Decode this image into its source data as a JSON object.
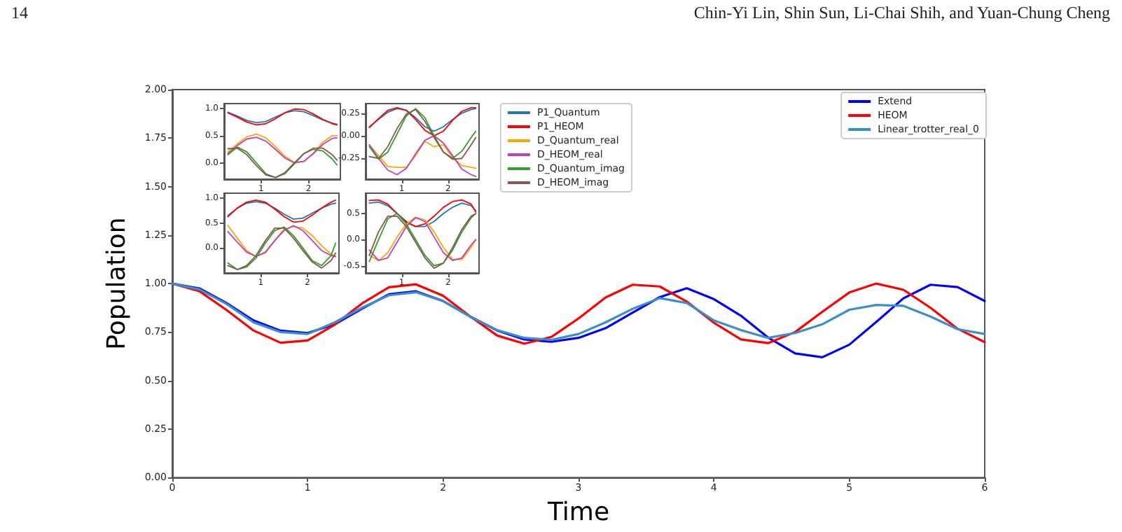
{
  "chart_data": [
    {
      "type": "line",
      "xlabel": "Time",
      "ylabel": "Population",
      "annotations": [
        "14",
        "Chin-Yi Lin, Shin Sun, Li-Chai Shih, and Yuan-Chung Cheng"
      ],
      "x": [
        0,
        0.2,
        0.4,
        0.6,
        0.8,
        1.0,
        1.2,
        1.4,
        1.6,
        1.8,
        2.0,
        2.2,
        2.4,
        2.6,
        2.8,
        3.0,
        3.2,
        3.4,
        3.6,
        3.8,
        4.0,
        4.2,
        4.4,
        4.6,
        4.8,
        5.0,
        5.2,
        5.4,
        5.6,
        5.8,
        6.0
      ],
      "series": [
        {
          "name": "Extend",
          "color": "#0000ff",
          "values": [
            1.0,
            0.975,
            0.9,
            0.81,
            0.757,
            0.745,
            0.79,
            0.87,
            0.945,
            0.96,
            0.91,
            0.83,
            0.758,
            0.712,
            0.7,
            0.72,
            0.77,
            0.85,
            0.93,
            0.976,
            0.92,
            0.834,
            0.722,
            0.64,
            0.62,
            0.685,
            0.803,
            0.924,
            0.994,
            0.982,
            0.91
          ]
        },
        {
          "name": "HEOM",
          "color": "#ff0000",
          "values": [
            1.0,
            0.961,
            0.864,
            0.758,
            0.695,
            0.707,
            0.788,
            0.897,
            0.981,
            0.996,
            0.937,
            0.831,
            0.732,
            0.69,
            0.725,
            0.82,
            0.928,
            0.994,
            0.985,
            0.907,
            0.798,
            0.712,
            0.693,
            0.75,
            0.854,
            0.954,
            1.0,
            0.968,
            0.875,
            0.767,
            0.698
          ]
        },
        {
          "name": "Linear_trotter_real_0",
          "color": "#3b8fc9",
          "values": [
            1.0,
            0.97,
            0.895,
            0.8,
            0.75,
            0.74,
            0.8,
            0.875,
            0.94,
            0.955,
            0.91,
            0.83,
            0.76,
            0.72,
            0.71,
            0.74,
            0.8,
            0.87,
            0.925,
            0.9,
            0.81,
            0.76,
            0.72,
            0.745,
            0.79,
            0.865,
            0.89,
            0.885,
            0.83,
            0.765,
            0.74
          ]
        }
      ],
      "xlim": [
        0,
        6
      ],
      "xticks": [
        0,
        1,
        2,
        3,
        4,
        5,
        6
      ],
      "ylim": [
        0,
        2
      ],
      "yticks": [
        {
          "value": 0,
          "label": "0.00"
        },
        {
          "value": 0.25,
          "label": "0.25"
        },
        {
          "value": 0.5,
          "label": "0.50"
        },
        {
          "value": 0.75,
          "label": "0.75"
        },
        {
          "value": 1,
          "label": "1.00"
        },
        {
          "value": 1.25,
          "label": "1.25"
        },
        {
          "value": 1.5,
          "label": "1.50"
        },
        {
          "value": 1.75,
          "label": "1.75"
        },
        {
          "value": 2,
          "label": "2.00"
        }
      ],
      "legend": "top right",
      "grid": false,
      "marker": "none",
      "line_style": "solid"
    },
    {
      "type": "line",
      "x": [
        0.3,
        0.5,
        0.7,
        0.9,
        1.1,
        1.3,
        1.5,
        1.7,
        1.9,
        2.1,
        2.3,
        2.5,
        2.6
      ],
      "series": [
        {
          "color": "#1f77b4",
          "values": [
            0.93,
            0.86,
            0.78,
            0.74,
            0.76,
            0.84,
            0.92,
            0.96,
            0.94,
            0.87,
            0.79,
            0.73,
            0.71
          ]
        },
        {
          "color": "#ff0000",
          "values": [
            0.92,
            0.84,
            0.75,
            0.7,
            0.72,
            0.81,
            0.92,
            0.99,
            0.98,
            0.9,
            0.8,
            0.72,
            0.7
          ]
        },
        {
          "color": "#ffa500",
          "values": [
            0.2,
            0.35,
            0.48,
            0.53,
            0.46,
            0.3,
            0.12,
            0.01,
            0.02,
            0.18,
            0.38,
            0.5,
            0.5
          ]
        },
        {
          "color": "#c040c0",
          "values": [
            0.17,
            0.32,
            0.44,
            0.47,
            0.4,
            0.25,
            0.09,
            0.0,
            0.03,
            0.17,
            0.34,
            0.45,
            0.46
          ]
        },
        {
          "color": "#2ca02c",
          "values": [
            0.15,
            0.29,
            0.2,
            0.0,
            -0.2,
            -0.27,
            -0.2,
            -0.02,
            0.17,
            0.25,
            0.22,
            0.07,
            -0.04
          ]
        },
        {
          "color": "#8c564b",
          "values": [
            0.26,
            0.27,
            0.15,
            -0.05,
            -0.22,
            -0.27,
            -0.18,
            0.0,
            0.17,
            0.27,
            0.27,
            0.15,
            0.05
          ]
        }
      ],
      "xlim": [
        0.22,
        2.67
      ],
      "xticks": [
        1,
        2
      ],
      "ylim": [
        -0.3,
        1.09
      ],
      "yticks": [
        {
          "value": 0,
          "label": "0.0"
        },
        {
          "value": 0.5,
          "label": "0.5"
        },
        {
          "value": 1,
          "label": "1.0"
        }
      ],
      "legend": false,
      "grid": false,
      "marker": "none",
      "line_style": "solid"
    },
    {
      "type": "line",
      "x": [
        0.3,
        0.5,
        0.7,
        0.9,
        1.1,
        1.3,
        1.5,
        1.7,
        1.9,
        2.1,
        2.3,
        2.5,
        2.6
      ],
      "series": [
        {
          "name": "P1_Quantum",
          "color": "#1f77b4",
          "values": [
            0.1,
            0.18,
            0.26,
            0.3,
            0.28,
            0.2,
            0.1,
            0.05,
            0.1,
            0.18,
            0.25,
            0.29,
            0.3
          ]
        },
        {
          "name": "P1_HEOM",
          "color": "#ff0000",
          "values": [
            0.09,
            0.19,
            0.28,
            0.31,
            0.28,
            0.18,
            0.06,
            0.0,
            0.05,
            0.17,
            0.27,
            0.31,
            0.31
          ]
        },
        {
          "name": "D_Quantum_real",
          "color": "#ffa500",
          "values": [
            -0.1,
            -0.22,
            -0.34,
            -0.35,
            -0.35,
            -0.22,
            -0.06,
            -0.12,
            -0.1,
            -0.24,
            -0.33,
            -0.35,
            -0.36
          ]
        },
        {
          "name": "D_HEOM_real",
          "color": "#c040c0",
          "values": [
            -0.1,
            -0.25,
            -0.38,
            -0.43,
            -0.36,
            -0.2,
            -0.05,
            0.0,
            -0.08,
            -0.22,
            -0.37,
            -0.43,
            -0.45
          ]
        },
        {
          "name": "D_Quantum_imag",
          "color": "#2ca02c",
          "values": [
            -0.12,
            -0.26,
            -0.18,
            0.02,
            0.22,
            0.3,
            0.2,
            0.0,
            -0.18,
            -0.25,
            -0.17,
            -0.02,
            0.05
          ]
        },
        {
          "name": "D_HEOM_imag",
          "color": "#8c564b",
          "values": [
            -0.23,
            -0.25,
            -0.12,
            0.08,
            0.24,
            0.29,
            0.16,
            -0.02,
            -0.18,
            -0.26,
            -0.25,
            -0.1,
            -0.02
          ]
        }
      ],
      "xlim": [
        0.22,
        2.67
      ],
      "xticks": [
        1,
        2
      ],
      "ylim": [
        -0.48,
        0.355
      ],
      "yticks": [
        {
          "value": -0.25,
          "label": "-0.25"
        },
        {
          "value": 0,
          "label": "0.00"
        },
        {
          "value": 0.25,
          "label": "0.25"
        }
      ],
      "legend": "right",
      "grid": false,
      "marker": "none",
      "line_style": "solid"
    },
    {
      "type": "line",
      "x": [
        0.3,
        0.5,
        0.7,
        0.9,
        1.1,
        1.3,
        1.5,
        1.7,
        1.9,
        2.1,
        2.3,
        2.5,
        2.6
      ],
      "series": [
        {
          "color": "#1f77b4",
          "values": [
            0.65,
            0.8,
            0.9,
            0.93,
            0.9,
            0.8,
            0.68,
            0.58,
            0.6,
            0.7,
            0.8,
            0.88,
            0.9
          ]
        },
        {
          "color": "#ff0000",
          "values": [
            0.63,
            0.8,
            0.92,
            0.96,
            0.92,
            0.78,
            0.63,
            0.52,
            0.54,
            0.66,
            0.8,
            0.92,
            0.96
          ]
        },
        {
          "color": "#ffa500",
          "values": [
            0.45,
            0.2,
            -0.05,
            -0.17,
            -0.1,
            0.15,
            0.38,
            0.43,
            0.4,
            0.25,
            0.05,
            -0.12,
            -0.17
          ]
        },
        {
          "color": "#c040c0",
          "values": [
            0.33,
            0.12,
            -0.08,
            -0.17,
            -0.08,
            0.15,
            0.35,
            0.45,
            0.35,
            0.15,
            -0.05,
            -0.15,
            -0.17
          ]
        },
        {
          "color": "#2ca02c",
          "values": [
            -0.3,
            -0.43,
            -0.38,
            -0.2,
            0.1,
            0.35,
            0.42,
            0.25,
            0.0,
            -0.25,
            -0.35,
            -0.15,
            0.1
          ]
        },
        {
          "color": "#8c564b",
          "values": [
            -0.35,
            -0.43,
            -0.35,
            -0.15,
            0.15,
            0.4,
            0.4,
            0.2,
            -0.05,
            -0.28,
            -0.4,
            -0.25,
            -0.1
          ]
        }
      ],
      "xlim": [
        0.22,
        2.67
      ],
      "xticks": [
        1,
        2
      ],
      "ylim": [
        -0.5,
        1.1
      ],
      "yticks": [
        {
          "value": 0,
          "label": "0.0"
        },
        {
          "value": 0.5,
          "label": "0.5"
        },
        {
          "value": 1,
          "label": "1.0"
        }
      ],
      "legend": false,
      "grid": false,
      "marker": "none",
      "line_style": "solid"
    },
    {
      "type": "line",
      "x": [
        0.3,
        0.5,
        0.7,
        0.9,
        1.1,
        1.3,
        1.5,
        1.7,
        1.9,
        2.1,
        2.3,
        2.5,
        2.6
      ],
      "series": [
        {
          "color": "#1f77b4",
          "values": [
            0.7,
            0.72,
            0.65,
            0.5,
            0.35,
            0.25,
            0.25,
            0.35,
            0.5,
            0.62,
            0.7,
            0.65,
            0.55
          ]
        },
        {
          "color": "#ff0000",
          "values": [
            0.75,
            0.76,
            0.68,
            0.5,
            0.33,
            0.25,
            0.3,
            0.45,
            0.62,
            0.73,
            0.76,
            0.68,
            0.53
          ]
        },
        {
          "color": "#ffa500",
          "values": [
            -0.3,
            -0.4,
            -0.25,
            0.05,
            0.3,
            0.43,
            0.38,
            0.15,
            -0.15,
            -0.38,
            -0.38,
            -0.15,
            0.0
          ]
        },
        {
          "color": "#c040c0",
          "values": [
            -0.2,
            -0.4,
            -0.35,
            -0.05,
            0.25,
            0.42,
            0.35,
            0.05,
            -0.25,
            -0.4,
            -0.35,
            -0.1,
            0.0
          ]
        },
        {
          "color": "#2ca02c",
          "values": [
            -0.42,
            0.0,
            0.4,
            0.5,
            0.3,
            0.0,
            -0.3,
            -0.5,
            -0.45,
            -0.2,
            0.15,
            0.42,
            0.5
          ]
        },
        {
          "color": "#8c564b",
          "values": [
            -0.3,
            0.15,
            0.45,
            0.45,
            0.25,
            -0.05,
            -0.35,
            -0.55,
            -0.45,
            -0.15,
            0.2,
            0.45,
            0.5
          ]
        }
      ],
      "xlim": [
        0.22,
        2.67
      ],
      "xticks": [
        1,
        2
      ],
      "ylim": [
        -0.64,
        0.89
      ],
      "yticks": [
        {
          "value": -0.5,
          "label": "-0.5"
        },
        {
          "value": 0,
          "label": "0.0"
        },
        {
          "value": 0.5,
          "label": "0.5"
        }
      ],
      "legend": false,
      "grid": false,
      "marker": "none",
      "line_style": "solid"
    }
  ]
}
